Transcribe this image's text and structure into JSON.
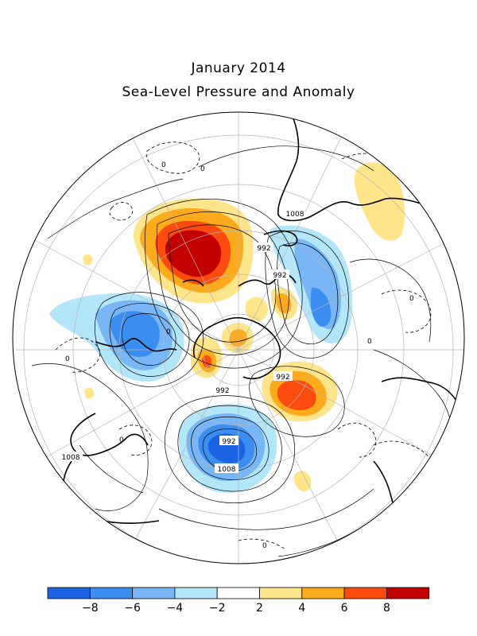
{
  "title": "January 2014",
  "subtitle": "Sea-Level Pressure and Anomaly",
  "contour_labels": {
    "p1008_a": "1008",
    "p992_a": "992",
    "p992_b": "992",
    "p992_c": "992",
    "p992_d": "992",
    "p992_e": "992",
    "p1008_b": "1008",
    "p1008_c": "1008",
    "zero_a": "0",
    "zero_b": "0",
    "zero_c": "0",
    "zero_d": "0",
    "zero_e": "0",
    "zero_f": "0",
    "zero_g": "0",
    "zero_h": "0"
  },
  "colorbar": {
    "colors": [
      "#1c63e3",
      "#3b8ef0",
      "#78b6f5",
      "#b4e6f9",
      "#ffffff",
      "#fee48b",
      "#fcab1d",
      "#fb4b0f",
      "#c20000"
    ],
    "tick_labels": [
      "-8",
      "-6",
      "-4",
      "-2",
      "2",
      "4",
      "6",
      "8"
    ]
  },
  "colors": {
    "strong_negative": "#1c63e3",
    "negative": "#3b8ef0",
    "weak_negative": "#78b6f5",
    "slight_negative": "#b4e6f9",
    "slight_positive": "#fee48b",
    "weak_positive": "#fcab1d",
    "positive": "#fb4b0f",
    "strong_positive": "#c20000"
  }
}
